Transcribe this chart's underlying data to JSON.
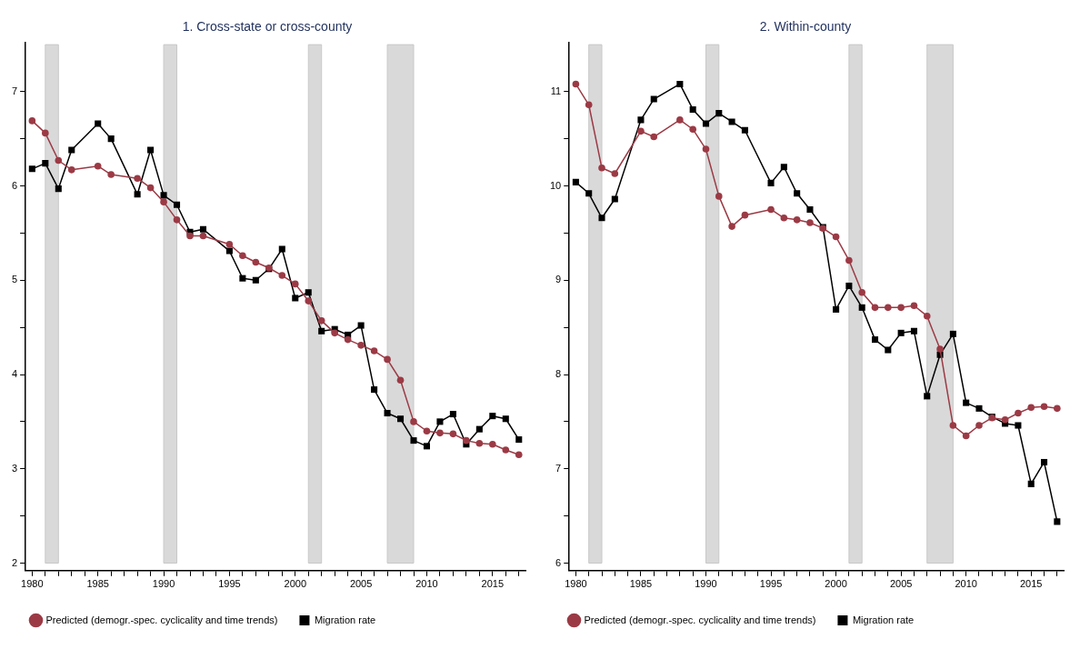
{
  "chart_data": [
    {
      "type": "line",
      "title": "1. Cross-state or cross-county",
      "xlim": [
        1979.5,
        2017.5
      ],
      "ylim": [
        1.92,
        7.52
      ],
      "xticks": [
        1980,
        {
          "value": 1981,
          "label": null
        },
        {
          "value": 1982,
          "label": null
        },
        {
          "value": 1983,
          "label": null
        },
        {
          "value": 1984,
          "label": null
        },
        1985,
        {
          "value": 1986,
          "label": null
        },
        {
          "value": 1987,
          "label": null
        },
        {
          "value": 1988,
          "label": null
        },
        {
          "value": 1989,
          "label": null
        },
        1990,
        {
          "value": 1991,
          "label": null
        },
        {
          "value": 1992,
          "label": null
        },
        {
          "value": 1993,
          "label": null
        },
        {
          "value": 1994,
          "label": null
        },
        1995,
        {
          "value": 1996,
          "label": null
        },
        {
          "value": 1997,
          "label": null
        },
        {
          "value": 1998,
          "label": null
        },
        {
          "value": 1999,
          "label": null
        },
        2000,
        {
          "value": 2001,
          "label": null
        },
        {
          "value": 2002,
          "label": null
        },
        {
          "value": 2003,
          "label": null
        },
        {
          "value": 2004,
          "label": null
        },
        2005,
        {
          "value": 2006,
          "label": null
        },
        {
          "value": 2007,
          "label": null
        },
        {
          "value": 2008,
          "label": null
        },
        {
          "value": 2009,
          "label": null
        },
        2010,
        {
          "value": 2011,
          "label": null
        },
        {
          "value": 2012,
          "label": null
        },
        {
          "value": 2013,
          "label": null
        },
        {
          "value": 2014,
          "label": null
        },
        2015,
        {
          "value": 2016,
          "label": null
        },
        {
          "value": 2017,
          "label": null
        }
      ],
      "yticks": [
        2,
        {
          "value": 2.5,
          "label": null
        },
        3,
        {
          "value": 3.5,
          "label": null
        },
        4,
        {
          "value": 4.5,
          "label": null
        },
        5,
        {
          "value": 5.5,
          "label": null
        },
        6,
        {
          "value": 6.5,
          "label": null
        },
        7
      ],
      "grid": false,
      "legend": "bottom",
      "line_style": "solid",
      "bands": [
        {
          "axis": "x",
          "from": 1981,
          "to": 1982,
          "color": "#d9d9d9"
        },
        {
          "axis": "x",
          "from": 1990,
          "to": 1991,
          "color": "#d9d9d9"
        },
        {
          "axis": "x",
          "from": 2001,
          "to": 2002,
          "color": "#d9d9d9"
        },
        {
          "axis": "x",
          "from": 2007,
          "to": 2009,
          "color": "#d9d9d9"
        }
      ],
      "series": [
        {
          "name": "Migration rate",
          "color": "#000000",
          "marker": "square",
          "x": [
            1980,
            1981,
            1982,
            1983,
            1985,
            1986,
            1988,
            1989,
            1990,
            1991,
            1992,
            1993,
            1995,
            1996,
            1997,
            1998,
            1999,
            2000,
            2001,
            2002,
            2003,
            2004,
            2005,
            2006,
            2007,
            2008,
            2009,
            2010,
            2011,
            2012,
            2013,
            2014,
            2015,
            2016,
            2017
          ],
          "values": [
            6.18,
            6.24,
            5.97,
            6.38,
            6.66,
            6.5,
            5.91,
            6.38,
            5.9,
            5.8,
            5.51,
            5.54,
            5.31,
            5.02,
            5.0,
            5.12,
            5.33,
            4.81,
            4.87,
            4.46,
            4.48,
            4.42,
            4.52,
            3.84,
            3.59,
            3.53,
            3.3,
            3.24,
            3.5,
            3.58,
            3.26,
            3.42,
            3.56,
            3.53,
            3.31
          ]
        },
        {
          "name": "Predicted (demogr.-spec. cyclicality and time trends)",
          "color": "#9b3a45",
          "marker": "circle",
          "x": [
            1980,
            1981,
            1982,
            1983,
            1985,
            1986,
            1988,
            1989,
            1990,
            1991,
            1992,
            1993,
            1995,
            1996,
            1997,
            1998,
            1999,
            2000,
            2001,
            2002,
            2003,
            2004,
            2005,
            2006,
            2007,
            2008,
            2009,
            2010,
            2011,
            2012,
            2013,
            2014,
            2015,
            2016,
            2017
          ],
          "values": [
            6.69,
            6.56,
            6.27,
            6.17,
            6.21,
            6.12,
            6.08,
            5.98,
            5.83,
            5.64,
            5.47,
            5.47,
            5.38,
            5.26,
            5.19,
            5.13,
            5.05,
            4.96,
            4.78,
            4.57,
            4.44,
            4.37,
            4.31,
            4.25,
            4.16,
            3.94,
            3.5,
            3.4,
            3.38,
            3.37,
            3.3,
            3.27,
            3.26,
            3.2,
            3.15
          ]
        }
      ]
    },
    {
      "type": "line",
      "title": "2. Within-county",
      "xlim": [
        1979.5,
        2017.5
      ],
      "ylim": [
        5.92,
        11.52
      ],
      "xticks": [
        1980,
        {
          "value": 1981,
          "label": null
        },
        {
          "value": 1982,
          "label": null
        },
        {
          "value": 1983,
          "label": null
        },
        {
          "value": 1984,
          "label": null
        },
        1985,
        {
          "value": 1986,
          "label": null
        },
        {
          "value": 1987,
          "label": null
        },
        {
          "value": 1988,
          "label": null
        },
        {
          "value": 1989,
          "label": null
        },
        1990,
        {
          "value": 1991,
          "label": null
        },
        {
          "value": 1992,
          "label": null
        },
        {
          "value": 1993,
          "label": null
        },
        {
          "value": 1994,
          "label": null
        },
        1995,
        {
          "value": 1996,
          "label": null
        },
        {
          "value": 1997,
          "label": null
        },
        {
          "value": 1998,
          "label": null
        },
        {
          "value": 1999,
          "label": null
        },
        2000,
        {
          "value": 2001,
          "label": null
        },
        {
          "value": 2002,
          "label": null
        },
        {
          "value": 2003,
          "label": null
        },
        {
          "value": 2004,
          "label": null
        },
        2005,
        {
          "value": 2006,
          "label": null
        },
        {
          "value": 2007,
          "label": null
        },
        {
          "value": 2008,
          "label": null
        },
        {
          "value": 2009,
          "label": null
        },
        2010,
        {
          "value": 2011,
          "label": null
        },
        {
          "value": 2012,
          "label": null
        },
        {
          "value": 2013,
          "label": null
        },
        {
          "value": 2014,
          "label": null
        },
        2015,
        {
          "value": 2016,
          "label": null
        },
        {
          "value": 2017,
          "label": null
        }
      ],
      "yticks": [
        6,
        {
          "value": 6.5,
          "label": null
        },
        7,
        {
          "value": 7.5,
          "label": null
        },
        8,
        {
          "value": 8.5,
          "label": null
        },
        9,
        {
          "value": 9.5,
          "label": null
        },
        10,
        {
          "value": 10.5,
          "label": null
        },
        11
      ],
      "grid": false,
      "legend": "bottom",
      "line_style": "solid",
      "bands": [
        {
          "axis": "x",
          "from": 1981,
          "to": 1982,
          "color": "#d9d9d9"
        },
        {
          "axis": "x",
          "from": 1990,
          "to": 1991,
          "color": "#d9d9d9"
        },
        {
          "axis": "x",
          "from": 2001,
          "to": 2002,
          "color": "#d9d9d9"
        },
        {
          "axis": "x",
          "from": 2007,
          "to": 2009,
          "color": "#d9d9d9"
        }
      ],
      "series": [
        {
          "name": "Migration rate",
          "color": "#000000",
          "marker": "square",
          "x": [
            1980,
            1981,
            1982,
            1983,
            1985,
            1986,
            1988,
            1989,
            1990,
            1991,
            1992,
            1993,
            1995,
            1996,
            1997,
            1998,
            1999,
            2000,
            2001,
            2002,
            2003,
            2004,
            2005,
            2006,
            2007,
            2008,
            2009,
            2010,
            2011,
            2012,
            2013,
            2014,
            2015,
            2016,
            2017
          ],
          "values": [
            10.04,
            9.92,
            9.66,
            9.86,
            10.7,
            10.92,
            11.08,
            10.81,
            10.66,
            10.77,
            10.68,
            10.59,
            10.03,
            10.2,
            9.92,
            9.75,
            9.56,
            8.69,
            8.94,
            8.71,
            8.37,
            8.26,
            8.44,
            8.46,
            7.77,
            8.21,
            8.43,
            7.7,
            7.64,
            7.55,
            7.48,
            7.46,
            6.84,
            7.07,
            6.44
          ]
        },
        {
          "name": "Predicted (demogr.-spec. cyclicality and time trends)",
          "color": "#9b3a45",
          "marker": "circle",
          "x": [
            1980,
            1981,
            1982,
            1983,
            1985,
            1986,
            1988,
            1989,
            1990,
            1991,
            1992,
            1993,
            1995,
            1996,
            1997,
            1998,
            1999,
            2000,
            2001,
            2002,
            2003,
            2004,
            2005,
            2006,
            2007,
            2008,
            2009,
            2010,
            2011,
            2012,
            2013,
            2014,
            2015,
            2016,
            2017
          ],
          "values": [
            11.08,
            10.86,
            10.19,
            10.13,
            10.58,
            10.52,
            10.7,
            10.6,
            10.39,
            9.89,
            9.57,
            9.69,
            9.75,
            9.66,
            9.64,
            9.61,
            9.55,
            9.46,
            9.21,
            8.87,
            8.71,
            8.71,
            8.71,
            8.73,
            8.62,
            8.27,
            7.46,
            7.35,
            7.46,
            7.54,
            7.52,
            7.59,
            7.65,
            7.66,
            7.64
          ]
        }
      ]
    }
  ]
}
